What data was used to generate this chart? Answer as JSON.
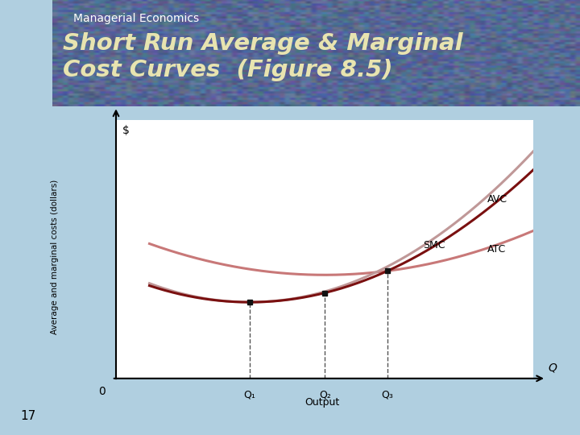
{
  "title_main": "Short Run Average & Marginal\nCost Curves  (Figure 8.5)",
  "title_sub": "Managerial Economics",
  "bg_header_color": "#1a2460",
  "bg_chart_color": "#ffffff",
  "bg_outer_color": "#b0cfe0",
  "ylabel": "Average and marginal costs (dollars)",
  "xlabel": "Output",
  "yaxis_label": "$",
  "xaxis_label": "Q",
  "origin_label": "0",
  "q_labels": [
    "Q₁",
    "Q₂",
    "Q₃"
  ],
  "curve_labels": [
    "SMC",
    "ATC",
    "AVC"
  ],
  "smc_color": "#7a1010",
  "atc_color": "#c87878",
  "avc_color": "#c09898",
  "dot_color": "#111111",
  "dashed_color": "#555555",
  "title_color": "#e8e4b0",
  "subtitle_color": "#ffffff",
  "q1": 0.32,
  "q2": 0.5,
  "q3": 0.65
}
